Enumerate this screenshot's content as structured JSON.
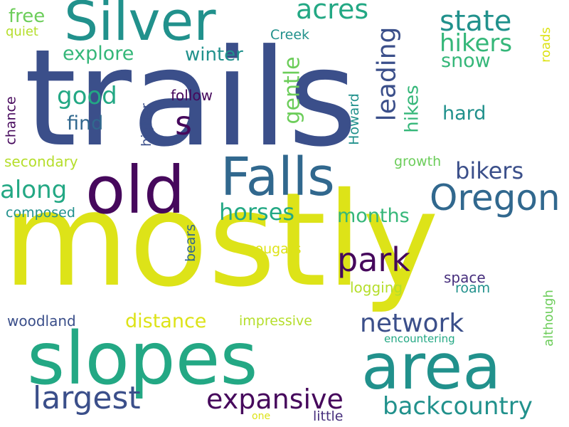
{
  "background": "#ffffff",
  "palette": {
    "navy": "#3b4f8a",
    "purple": "#472f7d",
    "dark_purple": "#46085c",
    "blue": "#31688e",
    "teal": "#21918c",
    "green_teal": "#23a884",
    "green": "#35b779",
    "light_green": "#6ccd5a",
    "yellow_green": "#b5de2b",
    "yellow": "#dde318"
  },
  "words": [
    {
      "text": "trails",
      "weight": 1.0,
      "orientation": "horizontal",
      "color": "#3b4f8a"
    },
    {
      "text": "mostly",
      "weight": 0.9,
      "orientation": "horizontal",
      "color": "#dde318"
    },
    {
      "text": "slopes",
      "weight": 0.6,
      "orientation": "horizontal",
      "color": "#23a884"
    },
    {
      "text": "area",
      "weight": 0.55,
      "orientation": "horizontal",
      "color": "#21918c"
    },
    {
      "text": "old",
      "weight": 0.5,
      "orientation": "horizontal",
      "color": "#46085c"
    },
    {
      "text": "Silver",
      "weight": 0.45,
      "orientation": "horizontal",
      "color": "#21918c"
    },
    {
      "text": "Falls",
      "weight": 0.42,
      "orientation": "horizontal",
      "color": "#31688e"
    },
    {
      "text": "Oregon",
      "weight": 0.3,
      "orientation": "horizontal",
      "color": "#31688e"
    },
    {
      "text": "park",
      "weight": 0.26,
      "orientation": "horizontal",
      "color": "#46085c"
    },
    {
      "text": "largest",
      "weight": 0.24,
      "orientation": "horizontal",
      "color": "#3b4f8a"
    },
    {
      "text": "expansive",
      "weight": 0.22,
      "orientation": "horizontal",
      "color": "#46085c"
    },
    {
      "text": "backcountry",
      "weight": 0.22,
      "orientation": "horizontal",
      "color": "#21918c"
    },
    {
      "text": "network",
      "weight": 0.2,
      "orientation": "horizontal",
      "color": "#3b4f8a"
    },
    {
      "text": "acres",
      "weight": 0.2,
      "orientation": "horizontal",
      "color": "#23a884"
    },
    {
      "text": "state",
      "weight": 0.2,
      "orientation": "horizontal",
      "color": "#21918c"
    },
    {
      "text": "leading",
      "weight": 0.2,
      "orientation": "vertical",
      "color": "#3b4f8a"
    },
    {
      "text": "hikers",
      "weight": 0.18,
      "orientation": "horizontal",
      "color": "#35b779"
    },
    {
      "text": "good",
      "weight": 0.18,
      "orientation": "horizontal",
      "color": "#23a884"
    },
    {
      "text": "s",
      "weight": 0.2,
      "orientation": "horizontal",
      "color": "#46085c"
    },
    {
      "text": "gentle",
      "weight": 0.16,
      "orientation": "vertical",
      "color": "#6ccd5a"
    },
    {
      "text": "bikers",
      "weight": 0.17,
      "orientation": "horizontal",
      "color": "#3b4f8a"
    },
    {
      "text": "along",
      "weight": 0.18,
      "orientation": "horizontal",
      "color": "#23a884"
    },
    {
      "text": "horses",
      "weight": 0.17,
      "orientation": "horizontal",
      "color": "#23a884"
    },
    {
      "text": "months",
      "weight": 0.14,
      "orientation": "horizontal",
      "color": "#35b779"
    },
    {
      "text": "distance",
      "weight": 0.14,
      "orientation": "horizontal",
      "color": "#dde318"
    },
    {
      "text": "hikes",
      "weight": 0.12,
      "orientation": "vertical",
      "color": "#35b779"
    },
    {
      "text": "hard",
      "weight": 0.12,
      "orientation": "horizontal",
      "color": "#21918c"
    },
    {
      "text": "snow",
      "weight": 0.12,
      "orientation": "horizontal",
      "color": "#35b779"
    },
    {
      "text": "explore",
      "weight": 0.12,
      "orientation": "horizontal",
      "color": "#35b779"
    },
    {
      "text": "winter",
      "weight": 0.12,
      "orientation": "horizontal",
      "color": "#21918c"
    },
    {
      "text": "find",
      "weight": 0.12,
      "orientation": "horizontal",
      "color": "#31688e"
    },
    {
      "text": "free",
      "weight": 0.11,
      "orientation": "horizontal",
      "color": "#6ccd5a"
    },
    {
      "text": "quiet",
      "weight": 0.09,
      "orientation": "horizontal",
      "color": "#b5de2b"
    },
    {
      "text": "Creek",
      "weight": 0.09,
      "orientation": "horizontal",
      "color": "#21918c"
    },
    {
      "text": "roads",
      "weight": 0.08,
      "orientation": "vertical",
      "color": "#dde318"
    },
    {
      "text": "follow",
      "weight": 0.09,
      "orientation": "horizontal",
      "color": "#46085c"
    },
    {
      "text": "higher",
      "weight": 0.09,
      "orientation": "vertical",
      "color": "#3b4f8a"
    },
    {
      "text": "Howard",
      "weight": 0.09,
      "orientation": "vertical",
      "color": "#21918c"
    },
    {
      "text": "chance",
      "weight": 0.09,
      "orientation": "vertical",
      "color": "#46085c"
    },
    {
      "text": "secondary",
      "weight": 0.1,
      "orientation": "horizontal",
      "color": "#b5de2b"
    },
    {
      "text": "growth",
      "weight": 0.09,
      "orientation": "horizontal",
      "color": "#6ccd5a"
    },
    {
      "text": "composed",
      "weight": 0.09,
      "orientation": "horizontal",
      "color": "#21918c"
    },
    {
      "text": "cougars",
      "weight": 0.09,
      "orientation": "horizontal",
      "color": "#dde318"
    },
    {
      "text": "bears",
      "weight": 0.09,
      "orientation": "vertical",
      "color": "#31688e"
    },
    {
      "text": "space",
      "weight": 0.09,
      "orientation": "horizontal",
      "color": "#472f7d"
    },
    {
      "text": "roam",
      "weight": 0.09,
      "orientation": "horizontal",
      "color": "#21918c"
    },
    {
      "text": "logging",
      "weight": 0.09,
      "orientation": "horizontal",
      "color": "#b5de2b"
    },
    {
      "text": "woodland",
      "weight": 0.09,
      "orientation": "horizontal",
      "color": "#3b4f8a"
    },
    {
      "text": "impressive",
      "weight": 0.09,
      "orientation": "horizontal",
      "color": "#b5de2b"
    },
    {
      "text": "although",
      "weight": 0.08,
      "orientation": "vertical",
      "color": "#6ccd5a"
    },
    {
      "text": "encountering",
      "weight": 0.07,
      "orientation": "horizontal",
      "color": "#23a884"
    },
    {
      "text": "little",
      "weight": 0.09,
      "orientation": "horizontal",
      "color": "#472f7d"
    },
    {
      "text": "one",
      "weight": 0.06,
      "orientation": "horizontal",
      "color": "#dde318"
    }
  ]
}
